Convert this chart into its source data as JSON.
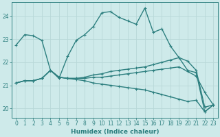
{
  "xlabel": "Humidex (Indice chaleur)",
  "bg_color": "#ceeaea",
  "line_color": "#2d7f7f",
  "grid_color": "#b8d8d8",
  "xlim": [
    -0.5,
    23.5
  ],
  "ylim": [
    19.6,
    24.6
  ],
  "yticks": [
    20,
    21,
    22,
    23,
    24
  ],
  "xticks": [
    0,
    1,
    2,
    3,
    4,
    5,
    6,
    7,
    8,
    9,
    10,
    11,
    12,
    13,
    14,
    15,
    16,
    17,
    18,
    19,
    20,
    21,
    22,
    23
  ],
  "lines": [
    {
      "x": [
        0,
        1,
        2,
        3,
        4,
        5,
        6,
        7,
        8,
        9,
        10,
        11,
        12,
        13,
        14,
        15,
        16,
        17,
        18,
        19,
        20,
        21,
        22,
        23
      ],
      "y": [
        22.75,
        23.2,
        23.15,
        22.95,
        21.65,
        21.3,
        22.25,
        22.95,
        23.2,
        23.55,
        24.15,
        24.2,
        23.95,
        23.8,
        23.65,
        24.35,
        23.3,
        23.45,
        22.7,
        22.2,
        22.05,
        21.65,
        20.05,
        20.15
      ]
    },
    {
      "x": [
        0,
        1,
        2,
        3,
        4,
        5,
        6,
        7,
        8,
        9,
        10,
        11,
        12,
        13,
        14,
        15,
        16,
        17,
        18,
        19,
        20,
        21,
        22,
        23
      ],
      "y": [
        21.1,
        21.2,
        21.2,
        21.3,
        21.65,
        21.35,
        21.3,
        21.3,
        21.35,
        21.45,
        21.5,
        21.6,
        21.65,
        21.7,
        21.75,
        21.8,
        21.9,
        22.0,
        22.1,
        22.2,
        21.65,
        21.55,
        19.85,
        20.15
      ]
    },
    {
      "x": [
        0,
        1,
        2,
        3,
        4,
        5,
        6,
        7,
        8,
        9,
        10,
        11,
        12,
        13,
        14,
        15,
        16,
        17,
        18,
        19,
        20,
        21,
        22,
        23
      ],
      "y": [
        21.1,
        21.2,
        21.2,
        21.3,
        21.65,
        21.35,
        21.3,
        21.3,
        21.3,
        21.35,
        21.35,
        21.4,
        21.45,
        21.5,
        21.55,
        21.6,
        21.65,
        21.7,
        21.75,
        21.8,
        21.6,
        21.4,
        20.7,
        20.15
      ]
    },
    {
      "x": [
        0,
        1,
        2,
        3,
        4,
        5,
        6,
        7,
        8,
        9,
        10,
        11,
        12,
        13,
        14,
        15,
        16,
        17,
        18,
        19,
        20,
        21,
        22,
        23
      ],
      "y": [
        21.1,
        21.2,
        21.2,
        21.3,
        21.65,
        21.35,
        21.3,
        21.25,
        21.2,
        21.1,
        21.05,
        21.0,
        20.95,
        20.9,
        20.85,
        20.8,
        20.7,
        20.6,
        20.5,
        20.4,
        20.3,
        20.35,
        19.85,
        20.15
      ]
    }
  ],
  "markersize": 2.5,
  "linewidth": 1.0
}
